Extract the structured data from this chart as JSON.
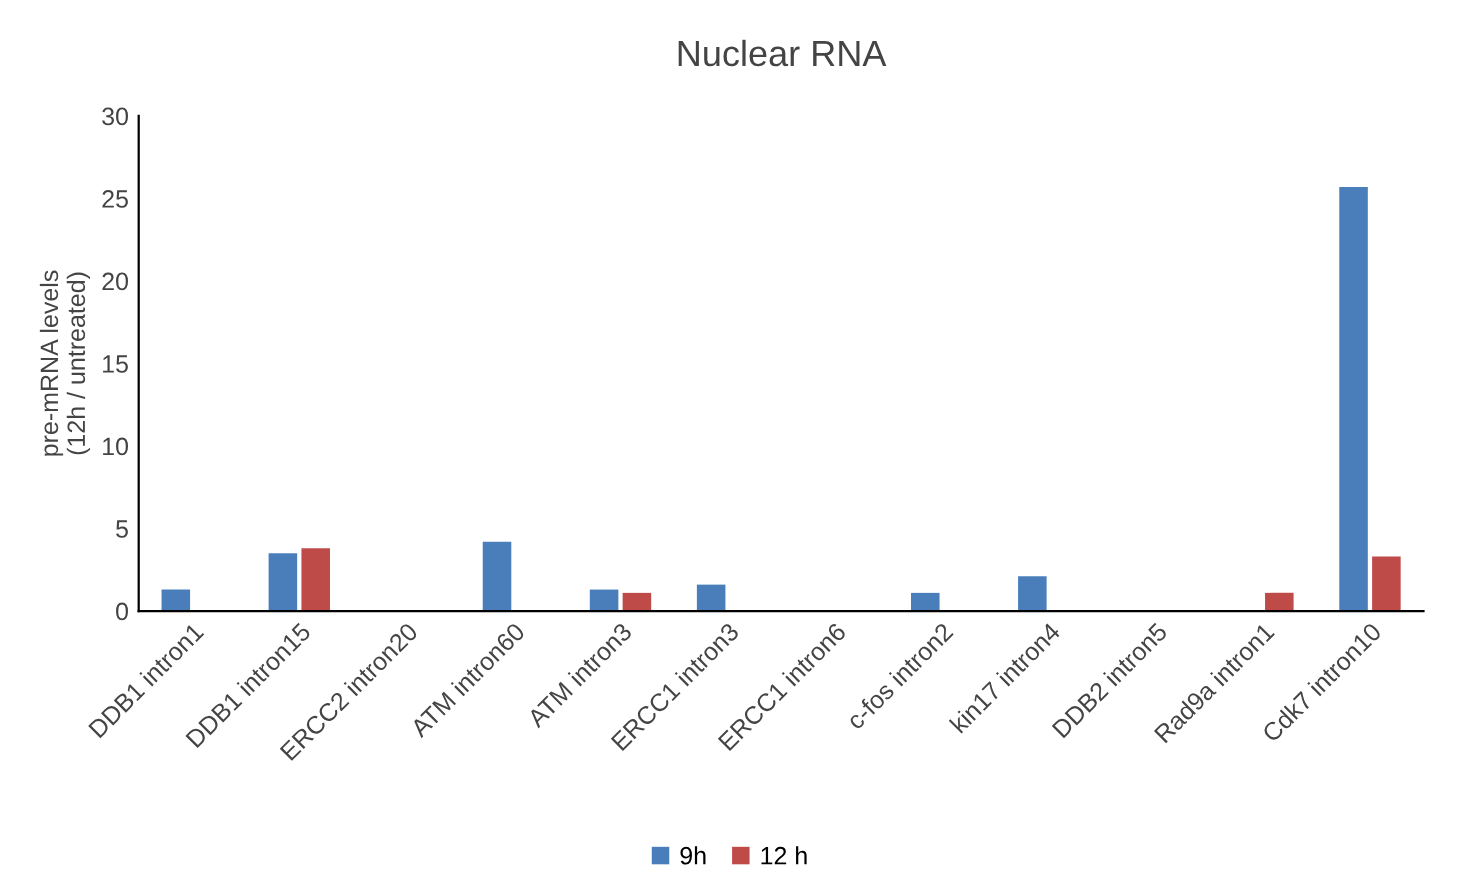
{
  "chart_data": {
    "type": "bar",
    "title": "Nuclear RNA",
    "ylabel": "pre-mRNA levels\n(12h / untreated)",
    "categories": [
      "DDB1 intron1",
      "DDB1 intron15",
      "ERCC2 intron20",
      "ATM intron60",
      "ATM intron3",
      "ERCC1 intron3",
      "ERCC1 intron6",
      "c-fos intron2",
      "kin17 intron4",
      "DDB2 intron5",
      "Rad9a intron1",
      "Cdk7 intron10"
    ],
    "series": [
      {
        "name": "9h",
        "color": "#4a7ebb",
        "values": [
          1.3,
          3.5,
          null,
          4.2,
          1.3,
          1.6,
          null,
          1.1,
          2.1,
          null,
          null,
          25.7
        ]
      },
      {
        "name": "12 h",
        "color": "#be4b48",
        "values": [
          null,
          3.8,
          null,
          null,
          1.1,
          null,
          null,
          null,
          null,
          null,
          1.1,
          3.3
        ]
      }
    ],
    "ylim": [
      0,
      30
    ],
    "yticks": [
      0,
      5,
      10,
      15,
      20,
      25,
      30
    ],
    "grid": false,
    "legend": "bottom"
  }
}
